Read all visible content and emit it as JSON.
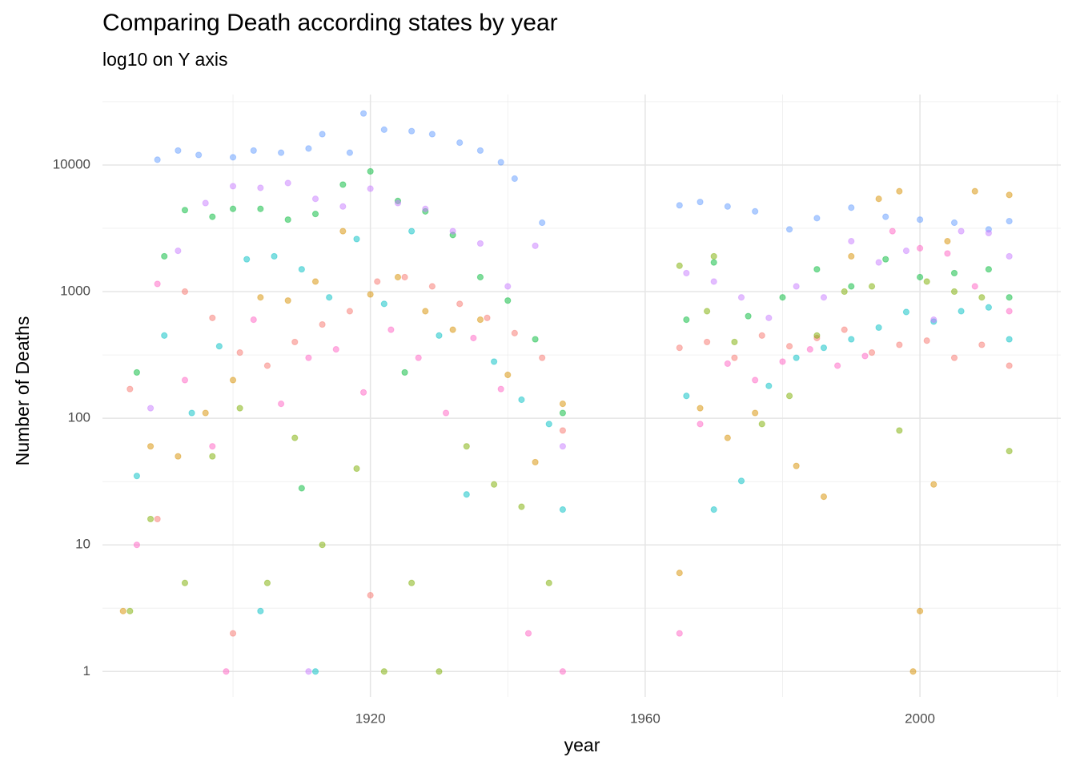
{
  "chart_data": {
    "type": "scatter",
    "title": "Comparing Death according states by year",
    "subtitle": "log10 on Y axis",
    "x_label": "year",
    "y_label": "Number of Deaths",
    "ylog": true,
    "grid": true,
    "xlim": [
      1881,
      2020.5
    ],
    "xticks": [
      1920,
      1960,
      2000
    ],
    "xminor": [
      1900,
      1940,
      1980,
      2020
    ],
    "ylim": [
      0.63,
      36000
    ],
    "yticks": [
      1,
      10,
      100,
      1000,
      10000
    ],
    "yminor": [
      3.16,
      31.6,
      316,
      3162,
      31623
    ],
    "series": [
      {
        "color": "#619CFF",
        "x": [
          1889,
          1892,
          1895,
          1900,
          1903,
          1907,
          1911,
          1913,
          1917,
          1919,
          1922,
          1926,
          1929,
          1933,
          1936,
          1939,
          1941,
          1945,
          1965,
          1968,
          1972,
          1976,
          1981,
          1985,
          1990,
          1995,
          2000,
          2005,
          2010,
          2013
        ],
        "values": [
          11000,
          13000,
          12000,
          11500,
          13000,
          12500,
          13500,
          17500,
          12500,
          25500,
          19000,
          18500,
          17500,
          15000,
          13000,
          10500,
          7800,
          3500,
          4800,
          5100,
          4700,
          4300,
          3100,
          3800,
          4600,
          3900,
          3700,
          3500,
          3100,
          3600
        ]
      },
      {
        "color": "#00BA38",
        "x": [
          1886,
          1890,
          1893,
          1897,
          1900,
          1904,
          1908,
          1912,
          1916,
          1920,
          1924,
          1928,
          1932,
          1936,
          1940,
          1944,
          1948,
          1966,
          1970,
          1975,
          1980,
          1985,
          1990,
          1995,
          2000,
          2005,
          2010,
          2013,
          1910,
          1925
        ],
        "values": [
          230,
          1900,
          4400,
          3900,
          4500,
          4500,
          3700,
          4100,
          7000,
          8900,
          5200,
          4300,
          2800,
          1300,
          850,
          420,
          110,
          600,
          1700,
          640,
          900,
          1500,
          1100,
          1800,
          1300,
          1400,
          1500,
          900,
          28,
          230
        ]
      },
      {
        "color": "#00BFC4",
        "x": [
          1886,
          1890,
          1894,
          1898,
          1902,
          1906,
          1910,
          1914,
          1918,
          1922,
          1926,
          1930,
          1934,
          1938,
          1942,
          1946,
          1948,
          1966,
          1970,
          1974,
          1978,
          1982,
          1986,
          1990,
          1994,
          1998,
          2002,
          2006,
          2010,
          2013,
          1904,
          1912
        ],
        "values": [
          35,
          450,
          110,
          370,
          1800,
          1900,
          1500,
          900,
          2600,
          800,
          3000,
          450,
          25,
          280,
          140,
          90,
          19,
          150,
          19,
          32,
          180,
          300,
          360,
          420,
          520,
          690,
          580,
          700,
          750,
          420,
          3,
          1
        ]
      },
      {
        "color": "#F8766D",
        "x": [
          1885,
          1889,
          1893,
          1897,
          1901,
          1905,
          1909,
          1913,
          1917,
          1921,
          1925,
          1929,
          1933,
          1937,
          1941,
          1945,
          1948,
          1965,
          1969,
          1973,
          1977,
          1981,
          1985,
          1989,
          1993,
          1997,
          2001,
          2005,
          2009,
          2013,
          1920,
          1900
        ],
        "values": [
          170,
          16,
          1000,
          620,
          330,
          260,
          400,
          550,
          700,
          1200,
          1300,
          1100,
          800,
          620,
          470,
          300,
          80,
          360,
          400,
          300,
          450,
          370,
          430,
          500,
          330,
          380,
          410,
          300,
          380,
          260,
          4,
          2
        ]
      },
      {
        "color": "#D89000",
        "x": [
          1884,
          1888,
          1892,
          1896,
          1900,
          1904,
          1908,
          1912,
          1916,
          1920,
          1924,
          1928,
          1932,
          1936,
          1940,
          1944,
          1948,
          1965,
          1968,
          1972,
          1976,
          1982,
          1986,
          1990,
          1994,
          1997,
          2000,
          2004,
          2008,
          2013,
          1999,
          2002
        ],
        "values": [
          3,
          60,
          50,
          110,
          200,
          900,
          850,
          1200,
          3000,
          950,
          1300,
          700,
          500,
          600,
          220,
          45,
          130,
          6,
          120,
          70,
          110,
          42,
          24,
          1900,
          5400,
          6200,
          3,
          2500,
          6200,
          5800,
          1,
          30
        ]
      },
      {
        "color": "#FF61C3",
        "x": [
          1886,
          1889,
          1893,
          1897,
          1899,
          1903,
          1907,
          1911,
          1915,
          1919,
          1923,
          1927,
          1931,
          1935,
          1939,
          1943,
          1948,
          1965,
          1968,
          1972,
          1976,
          1980,
          1984,
          1988,
          1992,
          1996,
          2000,
          2004,
          2008,
          2013
        ],
        "values": [
          10,
          1150,
          200,
          60,
          1,
          600,
          130,
          300,
          350,
          160,
          500,
          300,
          110,
          430,
          170,
          2,
          1,
          2,
          90,
          270,
          200,
          280,
          350,
          260,
          310,
          3000,
          2200,
          2000,
          1100,
          700
        ]
      },
      {
        "color": "#C77CFF",
        "x": [
          1888,
          1892,
          1896,
          1900,
          1904,
          1908,
          1912,
          1916,
          1920,
          1924,
          1928,
          1932,
          1936,
          1940,
          1944,
          1948,
          1966,
          1970,
          1974,
          1978,
          1982,
          1986,
          1990,
          1994,
          1998,
          2002,
          2006,
          2010,
          2013,
          1911
        ],
        "values": [
          120,
          2100,
          5000,
          6800,
          6600,
          7200,
          5400,
          4700,
          6500,
          5000,
          4500,
          3000,
          2400,
          1100,
          2300,
          60,
          1400,
          1200,
          900,
          620,
          1100,
          900,
          2500,
          1700,
          2100,
          600,
          3000,
          2900,
          1900,
          1
        ]
      },
      {
        "color": "#7CAE00",
        "x": [
          1885,
          1888,
          1893,
          1897,
          1901,
          1905,
          1909,
          1913,
          1918,
          1922,
          1926,
          1930,
          1934,
          1938,
          1942,
          1946,
          1965,
          1969,
          1973,
          1977,
          1981,
          1985,
          1989,
          1993,
          1997,
          2001,
          2005,
          2009,
          2013,
          1970
        ],
        "values": [
          3,
          16,
          5,
          50,
          120,
          5,
          70,
          10,
          40,
          1,
          5,
          1,
          60,
          30,
          20,
          5,
          1600,
          700,
          400,
          90,
          150,
          450,
          1000,
          1100,
          80,
          1200,
          1000,
          900,
          55,
          1900
        ]
      }
    ]
  }
}
